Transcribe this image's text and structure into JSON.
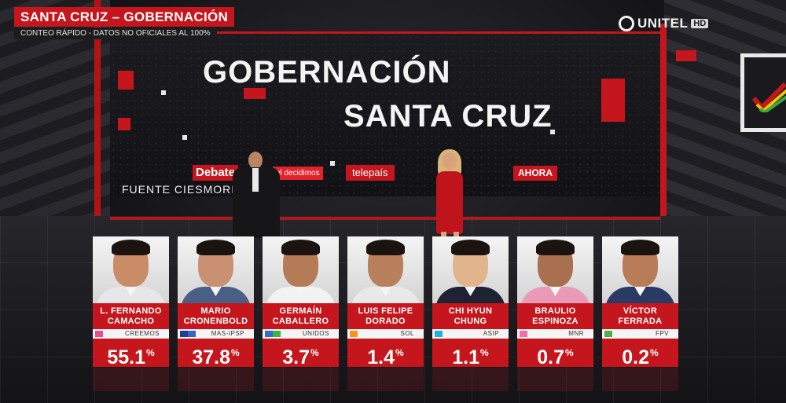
{
  "header": {
    "title": "SANTA CRUZ – GOBERNACIÓN",
    "subtitle": "CONTEO RÁPIDO - DATOS NO OFICIALES AL 100%"
  },
  "channel": {
    "name": "UNITEL",
    "tag": "HD"
  },
  "screen": {
    "title_line1": "GOBERNACIÓN",
    "title_line2": "SANTA CRUZ",
    "source": "FUENTE CIESMORI"
  },
  "sponsors": {
    "debate": "Debate",
    "eldecidimos": "el decidimos",
    "telepais": "telepaís",
    "ahora": "AHORA"
  },
  "colors": {
    "accent": "#c4161c",
    "background": "#111114"
  },
  "candidates": [
    {
      "first": "L. FERNANDO",
      "last": "CAMACHO",
      "party": "CREEMOS",
      "percent": "55.1",
      "party_colors": [
        "#e2508f"
      ],
      "skin": "#c98c66",
      "suit": "#e7e7ea"
    },
    {
      "first": "MARIO",
      "last": "CRONENBOLD",
      "party": "MAS-IPSP",
      "percent": "37.8",
      "party_colors": [
        "#1e3f8f",
        "#3a64c2"
      ],
      "skin": "#c99071",
      "suit": "#4a5f86"
    },
    {
      "first": "GERMAÍN",
      "last": "CABALLERO",
      "party": "UNIDOS",
      "percent": "3.7",
      "party_colors": [
        "#2f6fd1",
        "#39b54a"
      ],
      "skin": "#b57a56",
      "suit": "#f2f2f2"
    },
    {
      "first": "LUIS FELIPE",
      "last": "DORADO",
      "party": "SOL",
      "percent": "1.4",
      "party_colors": [
        "#f7941d"
      ],
      "skin": "#b9805c",
      "suit": "#e9e9ea"
    },
    {
      "first": "CHI HYUN",
      "last": "CHUNG",
      "party": "ASIP",
      "percent": "1.1",
      "party_colors": [
        "#19b5d8"
      ],
      "skin": "#e1b48c",
      "suit": "#1d2333"
    },
    {
      "first": "BRAULIO",
      "last": "ESPINOZA",
      "party": "MNR",
      "percent": "0.7",
      "party_colors": [
        "#f06ea9"
      ],
      "skin": "#a8704e",
      "suit": "#e89ab8"
    },
    {
      "first": "VÍCTOR",
      "last": "FERRADA",
      "party": "FPV",
      "percent": "0.2",
      "party_colors": [
        "#4caf50"
      ],
      "skin": "#b87c58",
      "suit": "#2a3b63"
    }
  ],
  "percent_suffix": "%"
}
